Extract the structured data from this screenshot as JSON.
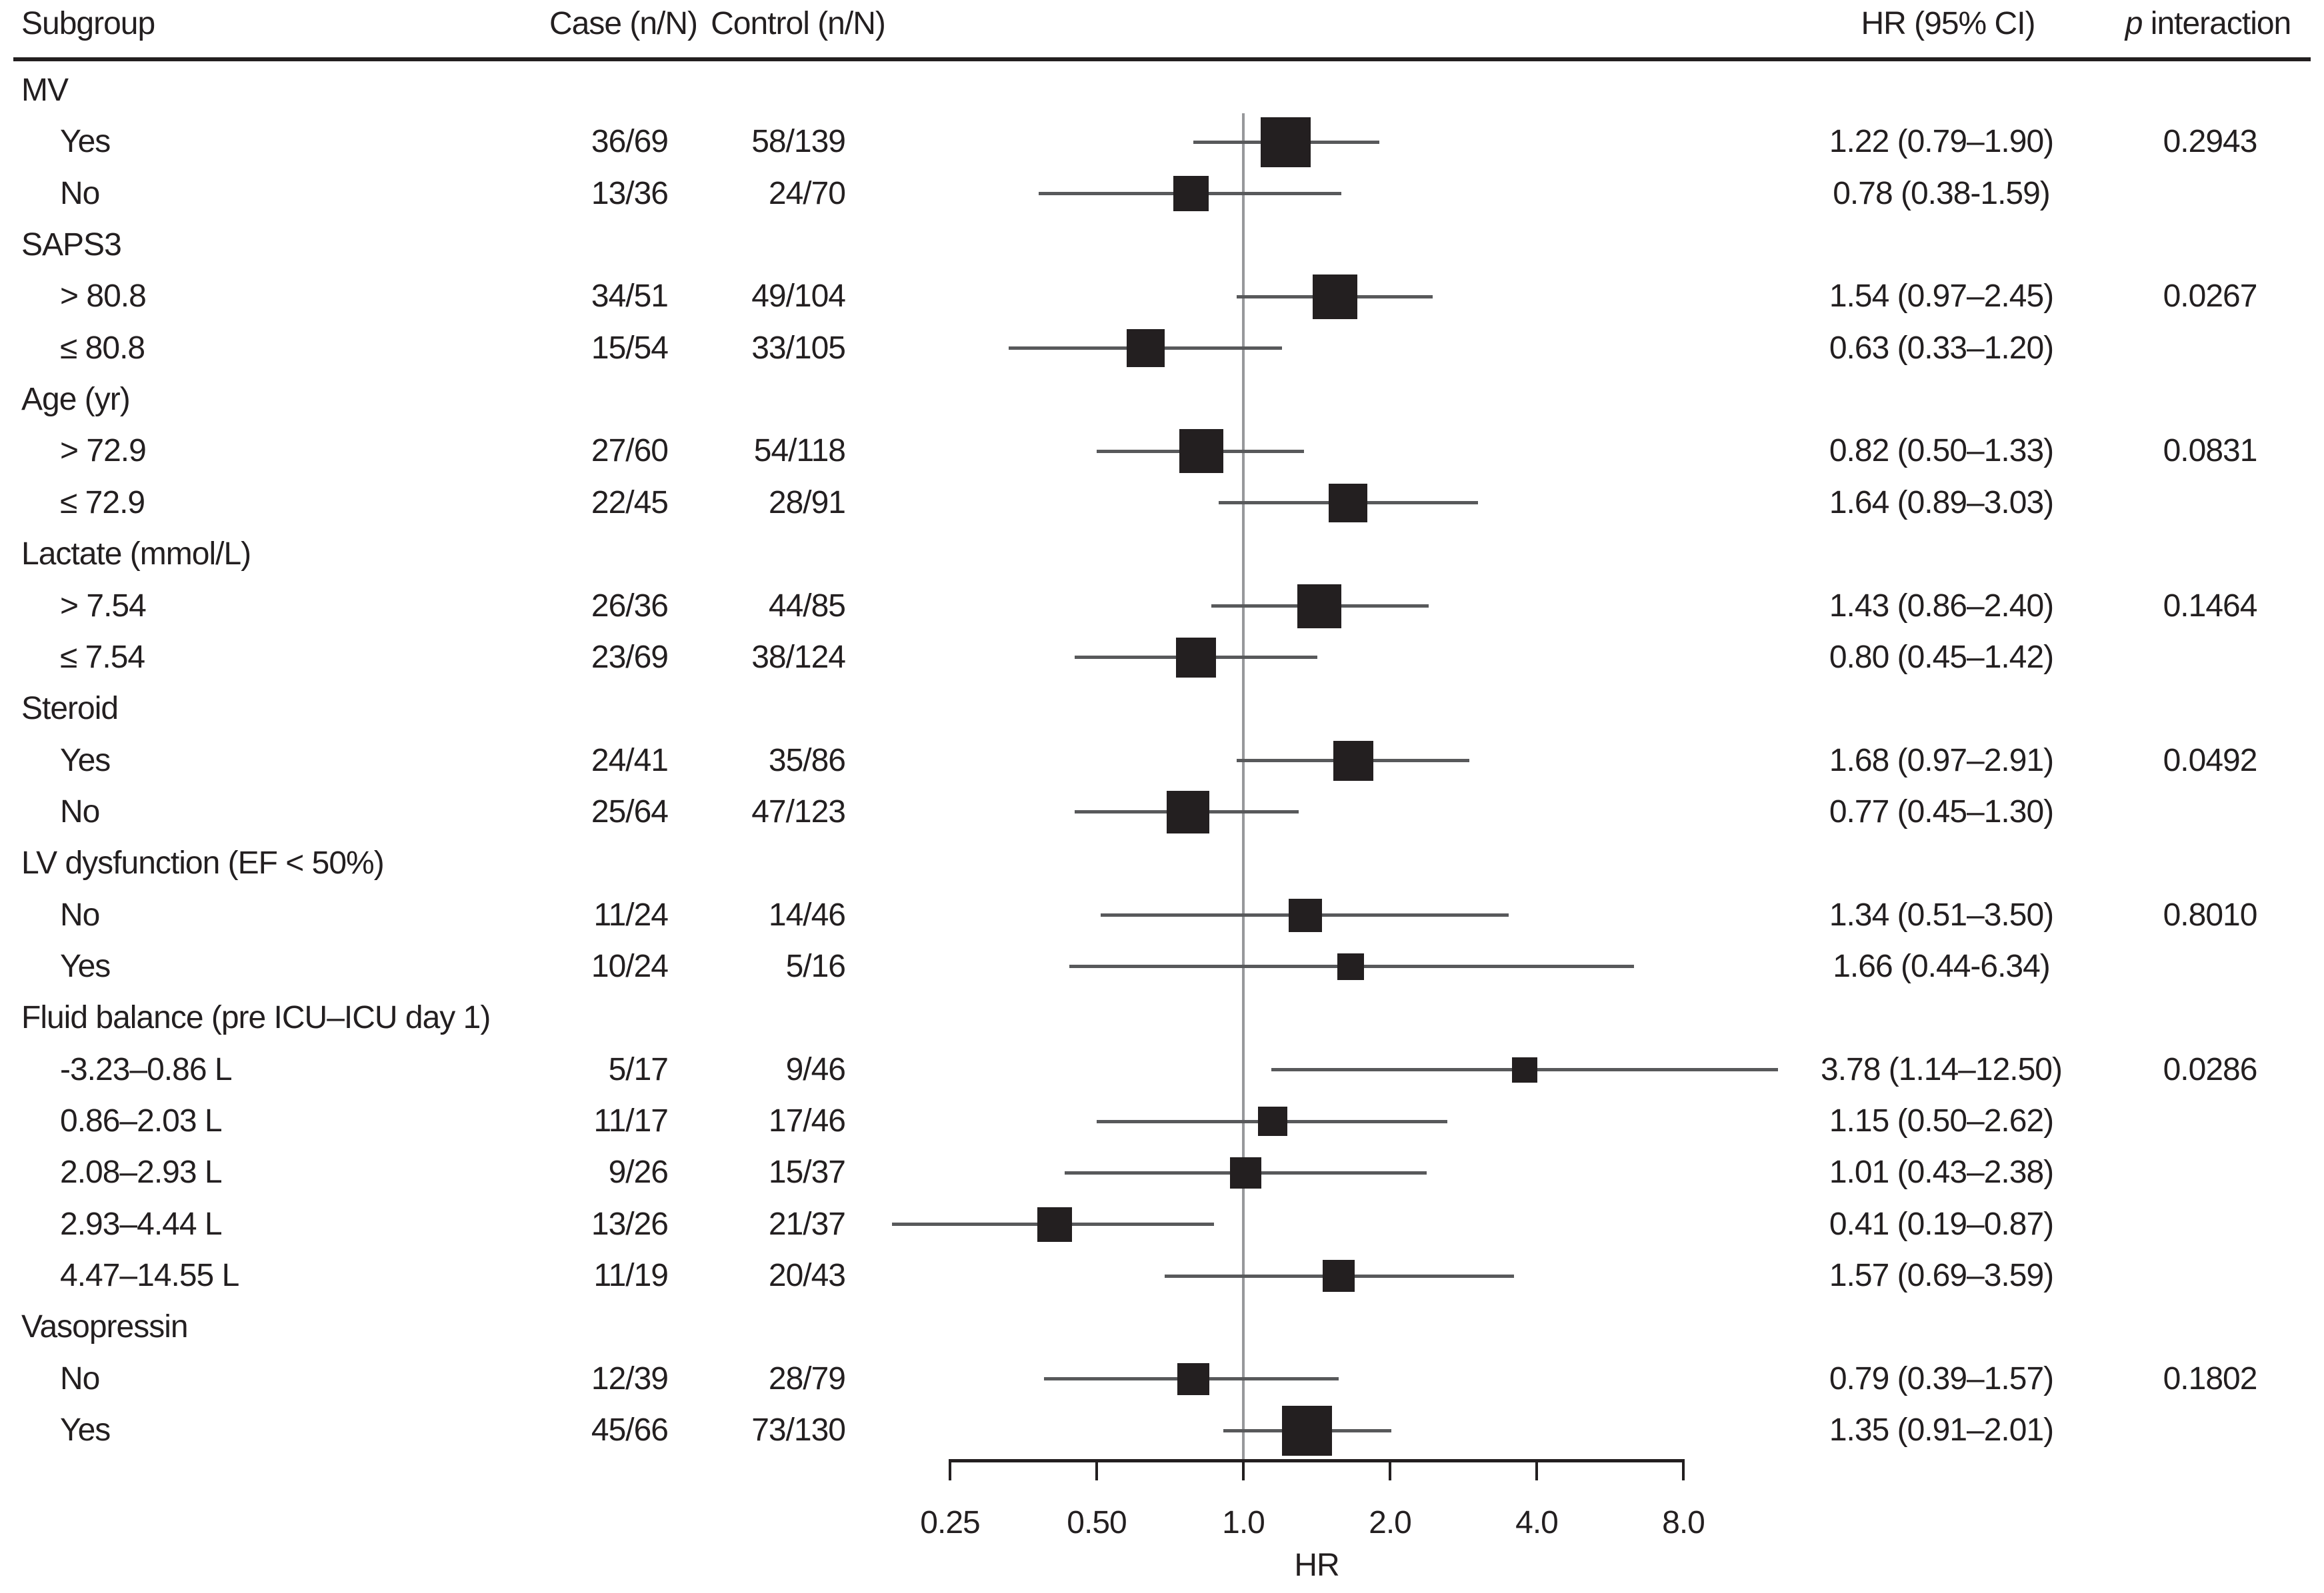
{
  "figure": {
    "header": {
      "subgroup": "Subgroup",
      "case": "Case (n/N)",
      "control": "Control (n/N)",
      "hr": "HR (95% CI)",
      "p_italic": "p",
      "p_rest": " interaction"
    },
    "axis": {
      "label": "HR",
      "ticks": [
        {
          "value": 0.25,
          "text": "0.25"
        },
        {
          "value": 0.5,
          "text": "0.50"
        },
        {
          "value": 1.0,
          "text": "1.0"
        },
        {
          "value": 2.0,
          "text": "2.0"
        },
        {
          "value": 4.0,
          "text": "4.0"
        },
        {
          "value": 8.0,
          "text": "8.0"
        }
      ],
      "reference_value": 1.0
    },
    "colors": {
      "ink": "#231f20",
      "ci_line": "#58595b",
      "reference_line": "#97989b"
    }
  },
  "chart_data": {
    "type": "forest",
    "xlabel": "HR",
    "x_scale": "log2",
    "x_range": [
      0.25,
      8.0
    ],
    "x_ticks": [
      0.25,
      0.5,
      1.0,
      2.0,
      4.0,
      8.0
    ],
    "reference_line": 1.0,
    "columns": [
      "Subgroup",
      "Case (n/N)",
      "Control (n/N)",
      "HR (95% CI)",
      "p interaction"
    ],
    "rows": [
      {
        "type": "group",
        "label": "MV"
      },
      {
        "type": "item",
        "label": "Yes",
        "case": "36/69",
        "control": "58/139",
        "hr": 1.22,
        "lo": 0.79,
        "hi": 1.9,
        "hr_text": "1.22 (0.79–1.90)",
        "p": "0.2943",
        "size": 75
      },
      {
        "type": "item",
        "label": "No",
        "case": "13/36",
        "control": "24/70",
        "hr": 0.78,
        "lo": 0.38,
        "hi": 1.59,
        "hr_text": "0.78 (0.38-1.59)",
        "p": "",
        "size": 53
      },
      {
        "type": "group",
        "label": "SAPS3"
      },
      {
        "type": "item",
        "label": "> 80.8",
        "case": "34/51",
        "control": "49/104",
        "hr": 1.54,
        "lo": 0.97,
        "hi": 2.45,
        "hr_text": "1.54 (0.97–2.45)",
        "p": "0.0267",
        "size": 67
      },
      {
        "type": "item",
        "label": "≤ 80.8",
        "case": "15/54",
        "control": "33/105",
        "hr": 0.63,
        "lo": 0.33,
        "hi": 1.2,
        "hr_text": "0.63 (0.33–1.20)",
        "p": "",
        "size": 57
      },
      {
        "type": "group",
        "label": "Age (yr)"
      },
      {
        "type": "item",
        "label": "> 72.9",
        "case": "27/60",
        "control": "54/118",
        "hr": 0.82,
        "lo": 0.5,
        "hi": 1.33,
        "hr_text": "0.82 (0.50–1.33)",
        "p": "0.0831",
        "size": 66
      },
      {
        "type": "item",
        "label": "≤ 72.9",
        "case": "22/45",
        "control": "28/91",
        "hr": 1.64,
        "lo": 0.89,
        "hi": 3.03,
        "hr_text": "1.64 (0.89–3.03)",
        "p": "",
        "size": 58
      },
      {
        "type": "group",
        "label": "Lactate (mmol/L)"
      },
      {
        "type": "item",
        "label": "> 7.54",
        "case": "26/36",
        "control": "44/85",
        "hr": 1.43,
        "lo": 0.86,
        "hi": 2.4,
        "hr_text": "1.43 (0.86–2.40)",
        "p": "0.1464",
        "size": 66
      },
      {
        "type": "item",
        "label": "≤ 7.54",
        "case": "23/69",
        "control": "38/124",
        "hr": 0.8,
        "lo": 0.45,
        "hi": 1.42,
        "hr_text": "0.80 (0.45–1.42)",
        "p": "",
        "size": 60
      },
      {
        "type": "group",
        "label": "Steroid"
      },
      {
        "type": "item",
        "label": "Yes",
        "case": "24/41",
        "control": "35/86",
        "hr": 1.68,
        "lo": 0.97,
        "hi": 2.91,
        "hr_text": "1.68 (0.97–2.91)",
        "p": "0.0492",
        "size": 60
      },
      {
        "type": "item",
        "label": "No",
        "case": "25/64",
        "control": "47/123",
        "hr": 0.77,
        "lo": 0.45,
        "hi": 1.3,
        "hr_text": "0.77 (0.45–1.30)",
        "p": "",
        "size": 64
      },
      {
        "type": "group",
        "label": "LV dysfunction (EF < 50%)"
      },
      {
        "type": "item",
        "label": "No",
        "case": "11/24",
        "control": "14/46",
        "hr": 1.34,
        "lo": 0.51,
        "hi": 3.5,
        "hr_text": "1.34 (0.51–3.50)",
        "p": "0.8010",
        "size": 50
      },
      {
        "type": "item",
        "label": "Yes",
        "case": "10/24",
        "control": "5/16",
        "hr": 1.66,
        "lo": 0.44,
        "hi": 6.34,
        "hr_text": "1.66 (0.44-6.34)",
        "p": "",
        "size": 40
      },
      {
        "type": "group",
        "label": "Fluid balance (pre ICU–ICU day 1)"
      },
      {
        "type": "item",
        "label": "-3.23–0.86 L",
        "case": "5/17",
        "control": "9/46",
        "hr": 3.78,
        "lo": 1.14,
        "hi": 12.5,
        "hr_text": "3.78 (1.14–12.50)",
        "p": "0.0286",
        "size": 38
      },
      {
        "type": "item",
        "label": "0.86–2.03 L",
        "case": "11/17",
        "control": "17/46",
        "hr": 1.15,
        "lo": 0.5,
        "hi": 2.62,
        "hr_text": "1.15 (0.50–2.62)",
        "p": "",
        "size": 44
      },
      {
        "type": "item",
        "label": "2.08–2.93 L",
        "case": "9/26",
        "control": "15/37",
        "hr": 1.01,
        "lo": 0.43,
        "hi": 2.38,
        "hr_text": "1.01 (0.43–2.38)",
        "p": "",
        "size": 47
      },
      {
        "type": "item",
        "label": "2.93–4.44 L",
        "case": "13/26",
        "control": "21/37",
        "hr": 0.41,
        "lo": 0.19,
        "hi": 0.87,
        "hr_text": "0.41 (0.19–0.87)",
        "p": "",
        "size": 52
      },
      {
        "type": "item",
        "label": "4.47–14.55 L",
        "case": "11/19",
        "control": "20/43",
        "hr": 1.57,
        "lo": 0.69,
        "hi": 3.59,
        "hr_text": "1.57 (0.69–3.59)",
        "p": "",
        "size": 48
      },
      {
        "type": "group",
        "label": "Vasopressin"
      },
      {
        "type": "item",
        "label": "No",
        "case": "12/39",
        "control": "28/79",
        "hr": 0.79,
        "lo": 0.39,
        "hi": 1.57,
        "hr_text": "0.79 (0.39–1.57)",
        "p": "0.1802",
        "size": 48
      },
      {
        "type": "item",
        "label": "Yes",
        "case": "45/66",
        "control": "73/130",
        "hr": 1.35,
        "lo": 0.91,
        "hi": 2.01,
        "hr_text": "1.35 (0.91–2.01)",
        "p": "",
        "size": 75
      }
    ]
  }
}
